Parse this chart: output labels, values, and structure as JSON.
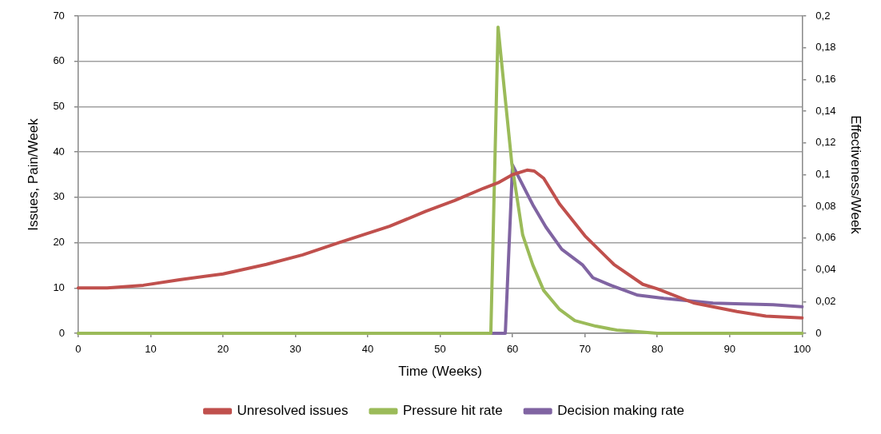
{
  "chart_data": {
    "type": "line",
    "xlabel": "Time (Weeks)",
    "ylabel": "Issues, Pain/Week",
    "y2label": "Effectiveness/Week",
    "xlim": [
      0,
      100
    ],
    "xticks": [
      0,
      10,
      20,
      30,
      40,
      50,
      60,
      70,
      80,
      90,
      100
    ],
    "ylim": [
      0,
      70
    ],
    "yticks": [
      0,
      10,
      20,
      30,
      40,
      50,
      60,
      70
    ],
    "y2lim": [
      0,
      0.2
    ],
    "y2ticks": [
      {
        "value": 0,
        "label": "0"
      },
      {
        "value": 0.02,
        "label": "0,02"
      },
      {
        "value": 0.04,
        "label": "0,04"
      },
      {
        "value": 0.06,
        "label": "0,06"
      },
      {
        "value": 0.08,
        "label": "0,08"
      },
      {
        "value": 0.1,
        "label": "0,1"
      },
      {
        "value": 0.12,
        "label": "0,12"
      },
      {
        "value": 0.14,
        "label": "0,14"
      },
      {
        "value": 0.16,
        "label": "0,16"
      },
      {
        "value": 0.18,
        "label": "0,18"
      },
      {
        "value": 0.2,
        "label": "0,2"
      }
    ],
    "grid": "y",
    "legend": "bottom",
    "marker": "none",
    "line_style": "solid",
    "series": [
      {
        "name": "Unresolved issues",
        "color": "#c0504d",
        "x": [
          0,
          4,
          9,
          14,
          20,
          26,
          31,
          36,
          43,
          48,
          52,
          56,
          58,
          60,
          62,
          63,
          64.3,
          66.5,
          70,
          74,
          78,
          80,
          85,
          91,
          95,
          100
        ],
        "values": [
          10,
          10,
          10.6,
          11.8,
          13.1,
          15.2,
          17.3,
          20,
          23.6,
          26.9,
          29.3,
          32,
          33.2,
          35,
          36,
          35.8,
          34.2,
          28.5,
          21.5,
          15.2,
          10.8,
          9.8,
          6.7,
          4.8,
          3.8,
          3.4
        ]
      },
      {
        "name": "Pressure hit rate",
        "color": "#9bbb59",
        "axis": "y2",
        "x": [
          0,
          57,
          58,
          58.9,
          59.9,
          61.4,
          62.8,
          64.3,
          66.5,
          68.6,
          71.5,
          74.4,
          77.3,
          80,
          100
        ],
        "values": [
          0,
          0,
          0.193,
          0.152,
          0.107,
          0.062,
          0.043,
          0.027,
          0.015,
          0.008,
          0.0045,
          0.002,
          0.001,
          0,
          0
        ]
      },
      {
        "name": "Decision making rate",
        "color": "#8064a2",
        "axis": "y2",
        "x": [
          0,
          59,
          60,
          62.8,
          64.6,
          66.8,
          69.7,
          71.1,
          73.7,
          77.3,
          80.9,
          87.7,
          96,
          100
        ],
        "values": [
          0,
          0,
          0.106,
          0.081,
          0.067,
          0.053,
          0.043,
          0.035,
          0.03,
          0.024,
          0.022,
          0.019,
          0.018,
          0.0167
        ]
      }
    ]
  }
}
